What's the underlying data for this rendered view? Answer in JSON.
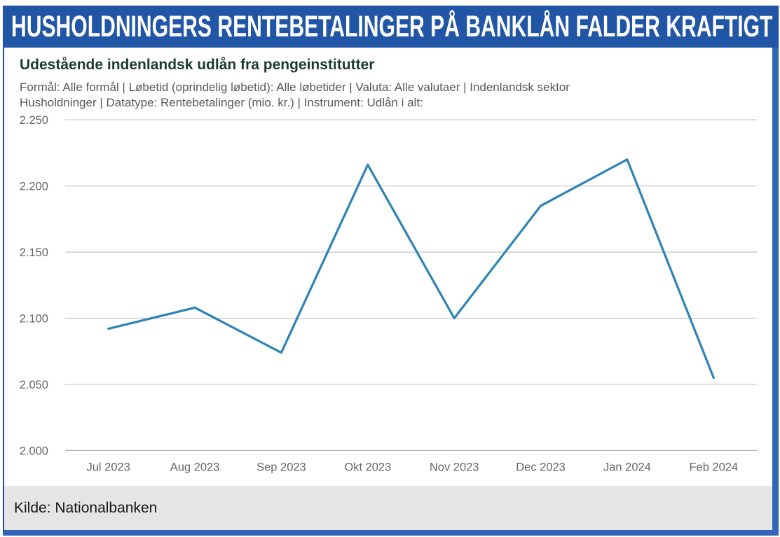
{
  "banner": {
    "title": "HUSHOLDNINGERS RENTEBETALINGER PÅ BANKLÅN FALDER KRAFTIGT"
  },
  "chart_data": {
    "type": "line",
    "title": "Udestående indenlandsk udlån fra pengeinstitutter",
    "subtitle_line1": "Formål: Alle formål | Løbetid (oprindelig løbetid): Alle løbetider | Valuta: Alle valutaer | Indenlandsk sektor",
    "subtitle_line2": "Husholdninger | Datatype: Rentebetalinger (mio. kr.) | Instrument: Udlån i alt:",
    "categories": [
      "Jul 2023",
      "Aug 2023",
      "Sep 2023",
      "Okt 2023",
      "Nov 2023",
      "Dec 2023",
      "Jan 2024",
      "Feb 2024"
    ],
    "series": [
      {
        "name": "Rentebetalinger (mio. kr.)",
        "values": [
          2092,
          2108,
          2074,
          2216,
          2100,
          2185,
          2220,
          2055
        ]
      }
    ],
    "ylabel": "",
    "xlabel": "",
    "ylim": [
      2000,
      2250
    ],
    "yticks": [
      2250,
      2200,
      2150,
      2100,
      2050,
      2000
    ],
    "ytick_labels": [
      "2.250",
      "2.200",
      "2.150",
      "2.100",
      "2.050",
      "2.000"
    ],
    "grid": true,
    "legend": false,
    "line_color": "#2d84b5",
    "grid_color": "#c9c9c9",
    "axis_line_color": "#b5b5b5",
    "tick_color": "#666666"
  },
  "footer": {
    "source": "Kilde: Nationalbanken"
  },
  "colors": {
    "banner_bg": "#2156a6",
    "frame_border": "#3365b6",
    "frame_border_dark": "#1d4d9b",
    "footer_bg": "#e5e5e6",
    "title_color": "#1d3a33",
    "subtitle_color": "#58595a"
  }
}
